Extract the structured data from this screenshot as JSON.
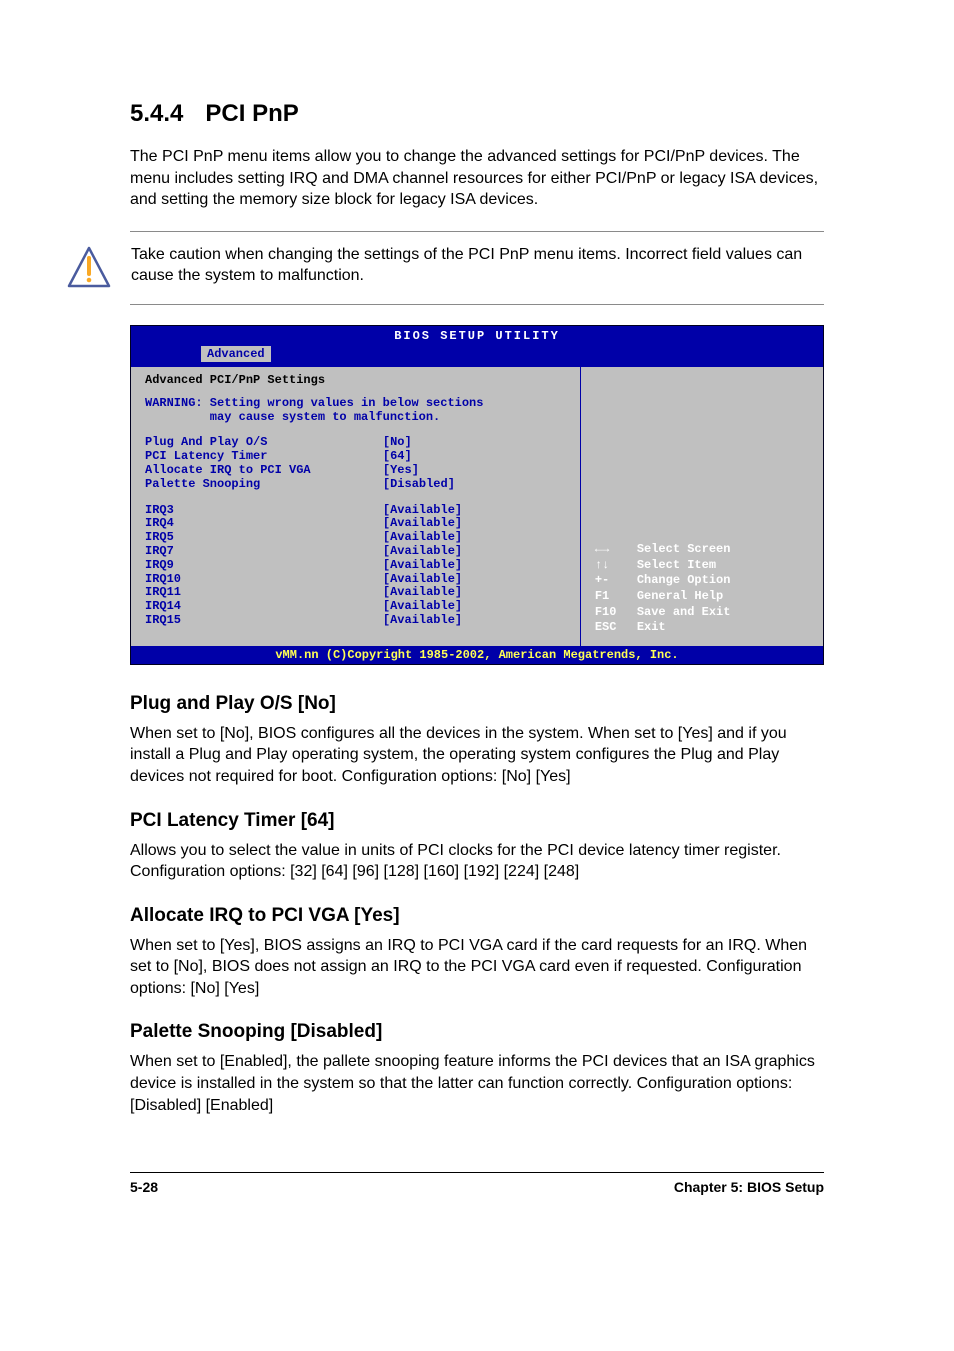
{
  "section": {
    "number": "5.4.4",
    "title": "PCI PnP",
    "intro": "The PCI PnP menu items allow you to change the advanced settings for PCI/PnP devices. The menu includes setting IRQ and DMA channel resources for either PCI/PnP or legacy ISA devices, and setting the memory size block for legacy ISA devices."
  },
  "caution": {
    "text": "Take caution when changing the settings of the PCI PnP menu items. Incorrect field values can cause the system to malfunction.",
    "icon_stroke": "#4a5b9e",
    "icon_accent": "#f9a825"
  },
  "bios": {
    "title": "BIOS SETUP UTILITY",
    "tab": "Advanced",
    "panel_title": "Advanced PCI/PnP Settings",
    "warning_line1": "WARNING: Setting wrong values in below sections",
    "warning_line2": "         may cause system to malfunction.",
    "group1": [
      {
        "label": "Plug And Play O/S",
        "value": "[No]"
      },
      {
        "label": "PCI Latency Timer",
        "value": "[64]"
      },
      {
        "label": "Allocate IRQ to PCI VGA",
        "value": "[Yes]"
      },
      {
        "label": "Palette Snooping",
        "value": "[Disabled]"
      }
    ],
    "group2": [
      {
        "label": "IRQ3",
        "value": "[Available]"
      },
      {
        "label": "IRQ4",
        "value": "[Available]"
      },
      {
        "label": "IRQ5",
        "value": "[Available]"
      },
      {
        "label": "IRQ7",
        "value": "[Available]"
      },
      {
        "label": "IRQ9",
        "value": "[Available]"
      },
      {
        "label": "IRQ10",
        "value": "[Available]"
      },
      {
        "label": "IRQ11",
        "value": "[Available]"
      },
      {
        "label": "IRQ14",
        "value": "[Available]"
      },
      {
        "label": "IRQ15",
        "value": "[Available]"
      }
    ],
    "help": [
      {
        "key": "←→",
        "label": "Select Screen"
      },
      {
        "key": "↑↓",
        "label": "Select Item"
      },
      {
        "key": "+-",
        "label": "Change Option"
      },
      {
        "key": "F1",
        "label": "General Help"
      },
      {
        "key": "F10",
        "label": "Save and Exit"
      },
      {
        "key": "ESC",
        "label": "Exit"
      }
    ],
    "footer": "vMM.nn (C)Copyright 1985-2002, American Megatrends, Inc.",
    "colors": {
      "header_bg": "#0000a8",
      "header_fg": "#ffffff",
      "body_bg": "#c0c0c0",
      "body_fg": "#0000a8",
      "help_fg": "#ffffff",
      "footer_fg": "#ffff55",
      "panel_title_fg": "#000000"
    }
  },
  "subsections": [
    {
      "heading": "Plug and Play O/S [No]",
      "body": "When set to [No], BIOS configures all the devices in the system. When set to [Yes] and if you install a Plug and Play operating system, the operating system configures the Plug and Play devices not required for boot. Configuration options: [No] [Yes]"
    },
    {
      "heading": "PCI Latency Timer [64]",
      "body": "Allows you to select the value in units of PCI clocks for the PCI device latency timer register. Configuration options: [32] [64] [96] [128] [160] [192] [224] [248]"
    },
    {
      "heading": "Allocate IRQ to PCI VGA [Yes]",
      "body": "When set to [Yes], BIOS assigns an IRQ to PCI VGA card if the card requests for an IRQ. When set to [No], BIOS does not assign an IRQ to the PCI VGA card even if requested. Configuration options: [No] [Yes]"
    },
    {
      "heading": "Palette Snooping [Disabled]",
      "body": "When set to [Enabled], the pallete snooping feature informs the PCI devices that an ISA graphics device is installed in the system so that the latter can function correctly. Configuration options: [Disabled] [Enabled]"
    }
  ],
  "page_footer": {
    "left": "5-28",
    "right": "Chapter 5: BIOS Setup"
  }
}
